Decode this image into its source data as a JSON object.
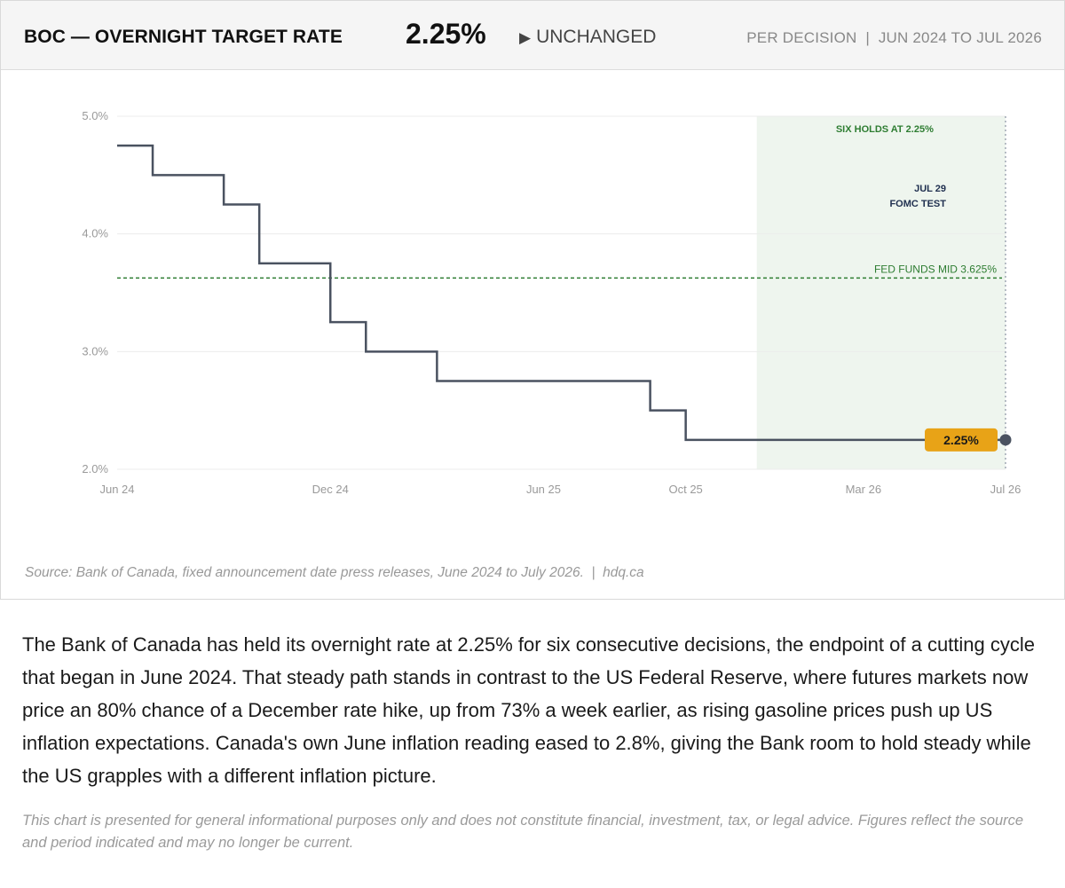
{
  "header": {
    "title": "BOC — OVERNIGHT TARGET RATE",
    "value": "2.25%",
    "status_icon": "triangle-right-icon",
    "status_glyph": "▶",
    "status": "UNCHANGED",
    "meta": "PER DECISION  |  JUN 2024 TO JUL 2026"
  },
  "chart_data": {
    "type": "line",
    "step": true,
    "x_tick_labels": [
      "Jun 24",
      "Dec 24",
      "Jun 25",
      "Oct 25",
      "Mar 26",
      "Jul 26"
    ],
    "y_tick_labels": [
      "2.0%",
      "3.0%",
      "4.0%",
      "5.0%"
    ],
    "ylim": [
      2.0,
      5.0
    ],
    "y_ticks": [
      2.0,
      3.0,
      4.0,
      5.0
    ],
    "grid": true,
    "series": [
      {
        "name": "",
        "color": "#4a5260",
        "points": [
          {
            "x": "2024-06",
            "y": 4.75
          },
          {
            "x": "2024-07",
            "y": 4.5
          },
          {
            "x": "2024-09",
            "y": 4.25
          },
          {
            "x": "2024-10",
            "y": 3.75
          },
          {
            "x": "2024-12",
            "y": 3.25
          },
          {
            "x": "2025-01",
            "y": 3.0
          },
          {
            "x": "2025-03",
            "y": 2.75
          },
          {
            "x": "2025-09",
            "y": 2.5
          },
          {
            "x": "2025-10",
            "y": 2.25
          },
          {
            "x": "2026-07",
            "y": 2.25
          }
        ]
      }
    ],
    "reference_line": {
      "label": "FED FUNDS MID 3.625%",
      "y": 3.625,
      "color": "#2e7d32"
    },
    "shaded_region": {
      "label": "SIX HOLDS AT 2.25%",
      "from": "2025-12",
      "to": "2026-07",
      "color": "#eef5ee"
    },
    "vertical_marker": {
      "label_line1": "JUL 29",
      "label_line2": "FOMC TEST",
      "x": "2026-07"
    },
    "end_label": {
      "text": "2.25%",
      "color": "#e8a317"
    }
  },
  "source": "Source: Bank of Canada, fixed announcement date press releases, June 2024 to July 2026.  |  hdq.ca",
  "paragraph": "The Bank of Canada has held its overnight rate at 2.25% for six consecutive decisions, the endpoint of a cutting cycle that began in June 2024. That steady path stands in contrast to the US Federal Reserve, where futures markets now price an 80% chance of a December rate hike, up from 73% a week earlier, as rising gasoline prices push up US inflation expectations. Canada's own June inflation reading eased to 2.8%, giving the Bank room to hold steady while the US grapples with a different inflation picture.",
  "disclaimer": "This chart is presented for general informational purposes only and does not constitute financial, investment, tax, or legal advice. Figures reflect the source and period indicated and may no longer be current."
}
